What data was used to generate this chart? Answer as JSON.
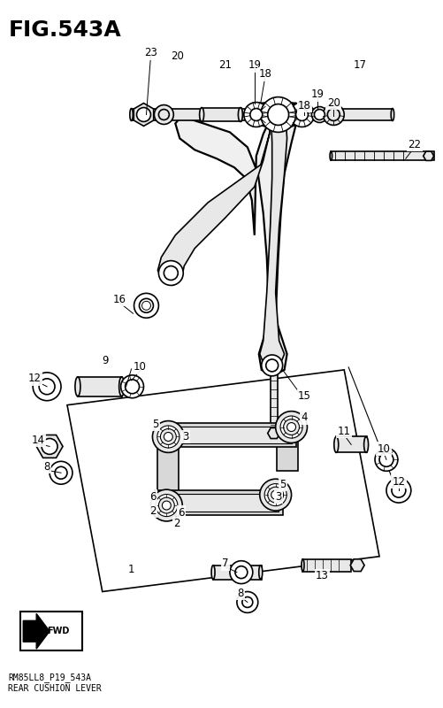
{
  "title": "FIG.543A",
  "subtitle_line1": "RM85LL8_P19_543A",
  "subtitle_line2": "REAR CUSHION LEVER",
  "bg_color": "#ffffff",
  "title_fontsize": 18,
  "label_fontsize": 8.5,
  "subtitle_fontsize": 7,
  "lw_main": 1.2,
  "lw_thin": 0.8,
  "lw_thick": 1.6,
  "gray_light": "#e8e8e8",
  "gray_mid": "#cccccc",
  "gray_dark": "#999999"
}
